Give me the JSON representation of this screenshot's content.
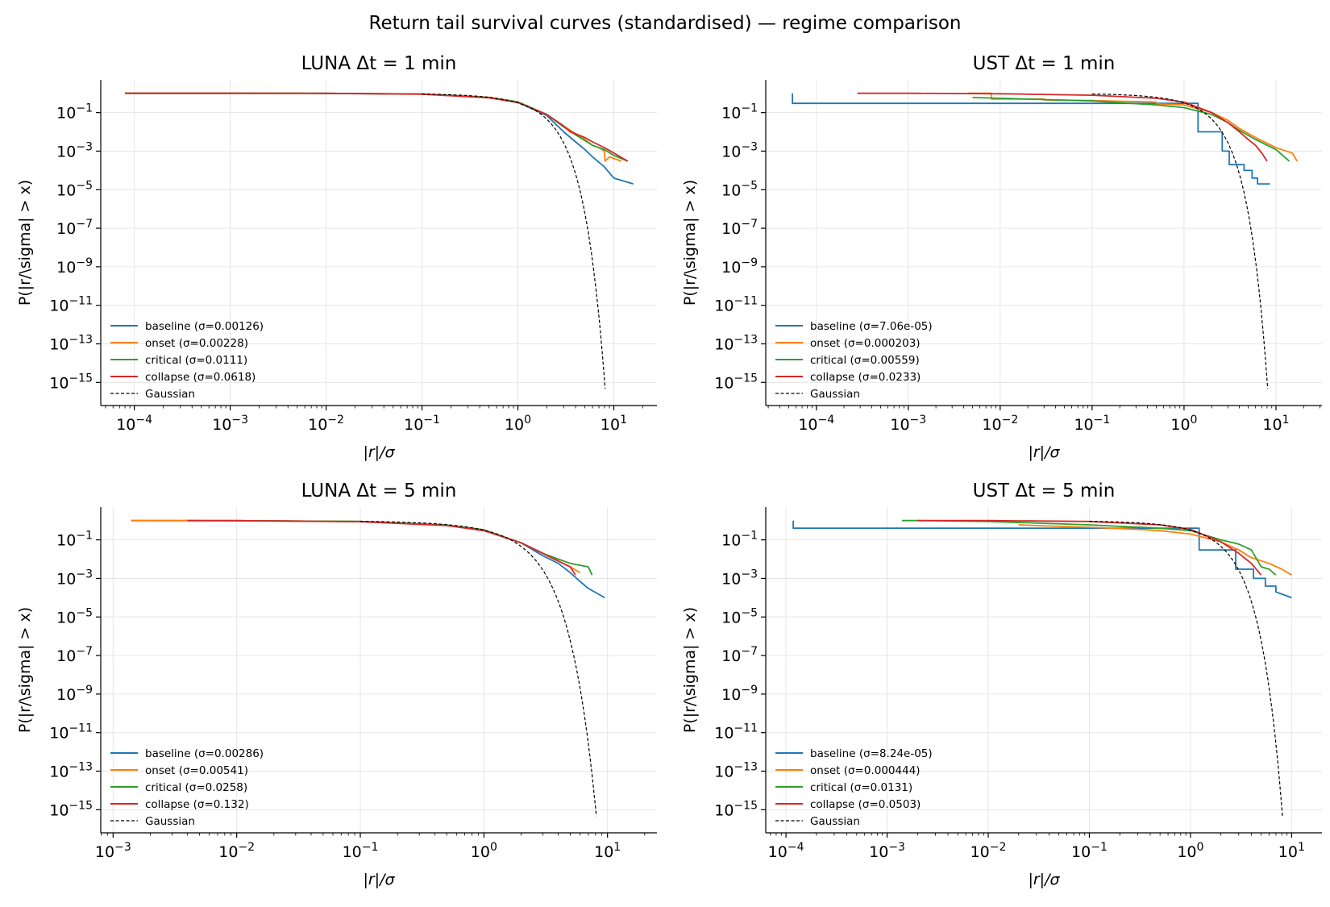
{
  "title": "Return tail survival curves (standardised) — regime comparison",
  "colors": {
    "baseline": "#1f77b4",
    "onset": "#ff7f0e",
    "critical": "#2ca02c",
    "collapse": "#d62728",
    "gaussian": "#000000"
  },
  "chart_data": [
    {
      "type": "line",
      "title": "LUNA   Δt = 1 min",
      "xlabel": "|r|/σ",
      "ylabel": "P(|r/\\sigma| > x)",
      "xscale": "log",
      "yscale": "log",
      "xlim_exp": [
        -4.35,
        1.45
      ],
      "ylim_exp": [
        -16.2,
        0.7
      ],
      "xticks": [
        "10^-4",
        "10^-3",
        "10^-2",
        "10^-1",
        "10^0",
        "10^1"
      ],
      "yticks": [
        "10^-1",
        "10^-3",
        "10^-5",
        "10^-7",
        "10^-9",
        "10^-11",
        "10^-13",
        "10^-15"
      ],
      "legend_position": "lower-left",
      "series": [
        {
          "name": "baseline",
          "label": "baseline  (σ=0.00126)",
          "step": false,
          "x": [
            8e-05,
            0.001,
            0.01,
            0.1,
            0.5,
            1,
            2,
            3,
            4,
            5,
            6,
            8,
            10,
            16
          ],
          "y": [
            1,
            1,
            0.99,
            0.92,
            0.6,
            0.34,
            0.07,
            0.01,
            0.003,
            0.0012,
            0.0005,
            0.00015,
            4e-05,
            2e-05
          ]
        },
        {
          "name": "onset",
          "label": "onset  (σ=0.00228)",
          "step": false,
          "x": [
            8e-05,
            0.001,
            0.01,
            0.1,
            0.5,
            1,
            2,
            3,
            4,
            5,
            6,
            7,
            8,
            8.1,
            9,
            12
          ],
          "y": [
            1,
            1,
            0.99,
            0.92,
            0.62,
            0.35,
            0.08,
            0.02,
            0.008,
            0.004,
            0.002,
            0.0015,
            0.001,
            0.0003,
            0.0005,
            0.0003
          ]
        },
        {
          "name": "critical",
          "label": "critical  (σ=0.0111)",
          "step": false,
          "x": [
            8e-05,
            0.001,
            0.01,
            0.1,
            0.5,
            1,
            2,
            3,
            4,
            5,
            6,
            8,
            10,
            14
          ],
          "y": [
            1,
            1,
            0.99,
            0.92,
            0.6,
            0.36,
            0.08,
            0.018,
            0.007,
            0.0035,
            0.002,
            0.0012,
            0.0006,
            0.0003
          ]
        },
        {
          "name": "collapse",
          "label": "collapse  (σ=0.0618)",
          "step": false,
          "x": [
            8e-05,
            0.001,
            0.01,
            0.1,
            0.5,
            1,
            2,
            3,
            3.5,
            4,
            5,
            6,
            8,
            10,
            14
          ],
          "y": [
            1,
            1,
            0.99,
            0.9,
            0.58,
            0.33,
            0.08,
            0.02,
            0.01,
            0.008,
            0.005,
            0.003,
            0.0015,
            0.0008,
            0.0003
          ]
        }
      ],
      "gaussian": {
        "label": "Gaussian",
        "x_start": 0.1,
        "x_end": 8.12
      }
    },
    {
      "type": "line",
      "title": "UST   Δt = 1 min",
      "xlabel": "|r|/σ",
      "ylabel": "P(|r/\\sigma| > x)",
      "xscale": "log",
      "yscale": "log",
      "xlim_exp": [
        -4.55,
        1.5
      ],
      "ylim_exp": [
        -16.2,
        0.7
      ],
      "xticks": [
        "10^-4",
        "10^-3",
        "10^-2",
        "10^-1",
        "10^0",
        "10^1"
      ],
      "yticks": [
        "10^-1",
        "10^-3",
        "10^-5",
        "10^-7",
        "10^-9",
        "10^-11",
        "10^-13",
        "10^-15"
      ],
      "legend_position": "lower-left",
      "series": [
        {
          "name": "baseline",
          "label": "baseline  (σ=7.06e-05)",
          "step": true,
          "x": [
            5.5e-05,
            5.5e-05,
            1.42,
            1.42,
            2.6,
            2.6,
            3.1,
            3.1,
            4.5,
            4.5,
            5.5,
            5.5,
            6.3,
            6.3,
            8.6
          ],
          "y": [
            1,
            0.3,
            0.3,
            0.01,
            0.01,
            0.001,
            0.001,
            0.0002,
            0.0002,
            0.0001,
            0.0001,
            4e-05,
            4e-05,
            2e-05,
            2e-05
          ]
        },
        {
          "name": "onset",
          "label": "onset  (σ=0.000203)",
          "step": false,
          "x": [
            0.0045,
            0.008,
            0.008,
            0.03,
            0.03,
            0.1,
            0.5,
            0.5,
            1,
            2,
            3,
            4,
            6,
            10,
            15,
            17
          ],
          "y": [
            1,
            1,
            0.5,
            0.5,
            0.45,
            0.42,
            0.35,
            0.28,
            0.25,
            0.1,
            0.04,
            0.015,
            0.005,
            0.0015,
            0.0008,
            0.0003
          ]
        },
        {
          "name": "critical",
          "label": "critical  (σ=0.00559)",
          "step": false,
          "x": [
            0.005,
            0.01,
            0.1,
            0.5,
            1,
            2,
            3,
            4,
            6,
            10,
            14
          ],
          "y": [
            0.6,
            0.55,
            0.4,
            0.25,
            0.18,
            0.08,
            0.03,
            0.012,
            0.004,
            0.0012,
            0.0003
          ]
        },
        {
          "name": "collapse",
          "label": "collapse  (σ=0.0233)",
          "step": false,
          "x": [
            0.00028,
            0.001,
            0.01,
            0.1,
            0.5,
            1,
            2,
            3,
            4,
            5,
            6,
            7,
            8
          ],
          "y": [
            1,
            1,
            0.95,
            0.8,
            0.55,
            0.35,
            0.1,
            0.03,
            0.01,
            0.004,
            0.002,
            0.0008,
            0.0003
          ]
        }
      ],
      "gaussian": {
        "label": "Gaussian",
        "x_start": 0.1,
        "x_end": 8.12
      }
    },
    {
      "type": "line",
      "title": "LUNA   Δt = 5 min",
      "xlabel": "|r|/σ",
      "ylabel": "P(|r/\\sigma| > x)",
      "xscale": "log",
      "yscale": "log",
      "xlim_exp": [
        -3.1,
        1.4
      ],
      "ylim_exp": [
        -16.2,
        0.7
      ],
      "xticks": [
        "10^-3",
        "10^-2",
        "10^-1",
        "10^0",
        "10^1"
      ],
      "yticks": [
        "10^-1",
        "10^-3",
        "10^-5",
        "10^-7",
        "10^-9",
        "10^-11",
        "10^-13",
        "10^-15"
      ],
      "legend_position": "lower-left",
      "series": [
        {
          "name": "baseline",
          "label": "baseline  (σ=0.00286)",
          "step": false,
          "x": [
            0.0014,
            0.01,
            0.1,
            0.5,
            1,
            2,
            3,
            4,
            5,
            6,
            7,
            9.5
          ],
          "y": [
            1,
            0.99,
            0.9,
            0.58,
            0.33,
            0.07,
            0.015,
            0.006,
            0.002,
            0.0007,
            0.0003,
            0.0001
          ]
        },
        {
          "name": "onset",
          "label": "onset  (σ=0.00541)",
          "step": false,
          "x": [
            0.0014,
            0.004,
            0.01,
            0.1,
            0.5,
            1,
            2,
            3,
            4,
            5,
            6
          ],
          "y": [
            1,
            1,
            0.99,
            0.9,
            0.58,
            0.33,
            0.07,
            0.02,
            0.008,
            0.004,
            0.002
          ]
        },
        {
          "name": "critical",
          "label": "critical  (σ=0.0258)",
          "step": false,
          "x": [
            0.004,
            0.01,
            0.1,
            0.5,
            1,
            2,
            3,
            4,
            5,
            7,
            7.5
          ],
          "y": [
            1,
            0.99,
            0.9,
            0.58,
            0.33,
            0.07,
            0.02,
            0.01,
            0.006,
            0.004,
            0.0015
          ]
        },
        {
          "name": "collapse",
          "label": "collapse  (σ=0.132)",
          "step": false,
          "x": [
            0.004,
            0.01,
            0.1,
            0.5,
            1,
            2,
            3,
            3.5,
            4,
            5,
            5.5
          ],
          "y": [
            1,
            0.99,
            0.88,
            0.55,
            0.3,
            0.07,
            0.02,
            0.012,
            0.008,
            0.004,
            0.0015
          ]
        }
      ],
      "gaussian": {
        "label": "Gaussian",
        "x_start": 0.1,
        "x_end": 8.12
      }
    },
    {
      "type": "line",
      "title": "UST   Δt = 5 min",
      "xlabel": "|r|/σ",
      "ylabel": "P(|r/\\sigma| > x)",
      "xscale": "log",
      "yscale": "log",
      "xlim_exp": [
        -4.2,
        1.3
      ],
      "ylim_exp": [
        -16.2,
        0.7
      ],
      "xticks": [
        "10^-4",
        "10^-3",
        "10^-2",
        "10^-1",
        "10^0",
        "10^1"
      ],
      "yticks": [
        "10^-1",
        "10^-3",
        "10^-5",
        "10^-7",
        "10^-9",
        "10^-11",
        "10^-13",
        "10^-15"
      ],
      "legend_position": "lower-left",
      "series": [
        {
          "name": "baseline",
          "label": "baseline  (σ=8.24e-05)",
          "step": true,
          "x": [
            0.000118,
            0.000118,
            1.22,
            1.22,
            2.8,
            2.8,
            4.2,
            4.2,
            5.5,
            5.5,
            7,
            7,
            10
          ],
          "y": [
            1,
            0.4,
            0.4,
            0.03,
            0.03,
            0.003,
            0.003,
            0.001,
            0.001,
            0.0004,
            0.0004,
            0.0002,
            0.0001
          ]
        },
        {
          "name": "onset",
          "label": "onset  (σ=0.000444)",
          "step": false,
          "x": [
            0.02,
            0.03,
            0.1,
            0.3,
            0.5,
            1,
            2,
            3,
            4,
            6,
            8,
            10
          ],
          "y": [
            0.6,
            0.55,
            0.45,
            0.35,
            0.3,
            0.2,
            0.08,
            0.03,
            0.012,
            0.006,
            0.003,
            0.0015
          ]
        },
        {
          "name": "critical",
          "label": "critical  (σ=0.0131)",
          "step": false,
          "x": [
            0.0014,
            0.002,
            0.01,
            0.1,
            0.5,
            1,
            2,
            3,
            4,
            5,
            6,
            7
          ],
          "y": [
            1,
            1,
            0.9,
            0.6,
            0.4,
            0.3,
            0.1,
            0.06,
            0.03,
            0.004,
            0.003,
            0.0015
          ]
        },
        {
          "name": "collapse",
          "label": "collapse  (σ=0.0503)",
          "step": false,
          "x": [
            0.002,
            0.01,
            0.1,
            0.5,
            1,
            2,
            3,
            4,
            5
          ],
          "y": [
            1,
            1,
            0.9,
            0.6,
            0.35,
            0.08,
            0.02,
            0.006,
            0.0015
          ]
        }
      ],
      "gaussian": {
        "label": "Gaussian",
        "x_start": 0.1,
        "x_end": 8.12
      }
    }
  ]
}
